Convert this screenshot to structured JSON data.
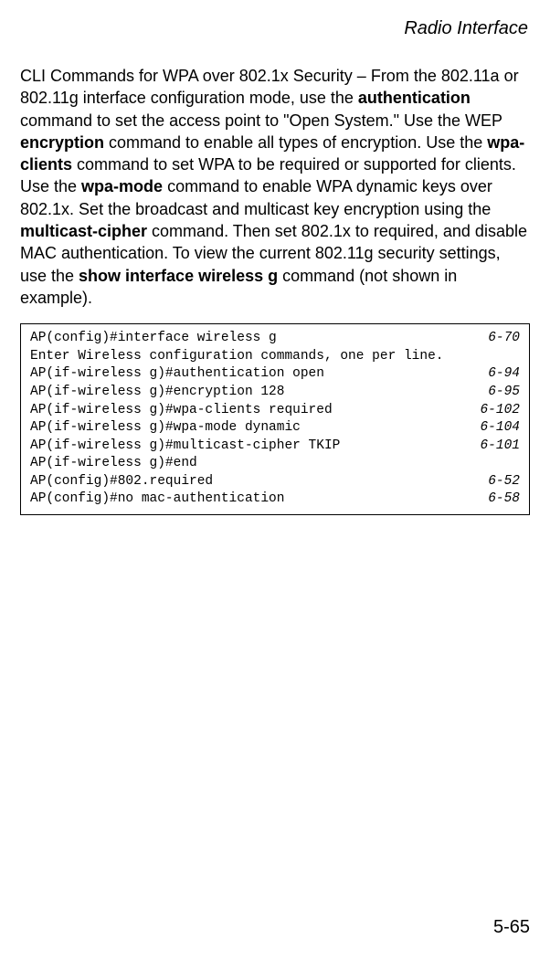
{
  "header": {
    "title": "Radio Interface"
  },
  "paragraph": {
    "p1": "CLI Commands for WPA over 802.1x Security – From the 802.11a or 802.11g interface configuration mode, use the ",
    "b1": "authentication",
    "p2": " command to set the access point to \"Open System.\" Use the WEP ",
    "b2": "encryption",
    "p3": " command to enable all types of encryption. Use the ",
    "b3": "wpa-clients",
    "p4": " command to set WPA to be required or supported for clients. Use the ",
    "b4": "wpa-mode",
    "p5": " command to enable WPA dynamic keys over 802.1x. Set the broadcast and multicast key encryption using the ",
    "b5": "multicast-cipher",
    "p6": " command. Then set 802.1x to required, and disable MAC authentication. To view the current 802.11g security settings, use the ",
    "b6": "show interface wireless g",
    "p7": " command (not shown in example)."
  },
  "code": {
    "lines": [
      {
        "cmd": "AP(config)#interface wireless g",
        "ref": "6-70"
      },
      {
        "cmd": "Enter Wireless configuration commands, one per line.",
        "ref": ""
      },
      {
        "cmd": "AP(if-wireless g)#authentication open",
        "ref": "6-94"
      },
      {
        "cmd": "AP(if-wireless g)#encryption 128",
        "ref": "6-95"
      },
      {
        "cmd": "AP(if-wireless g)#wpa-clients required",
        "ref": "6-102"
      },
      {
        "cmd": "AP(if-wireless g)#wpa-mode dynamic",
        "ref": "6-104"
      },
      {
        "cmd": "AP(if-wireless g)#multicast-cipher TKIP",
        "ref": "6-101"
      },
      {
        "cmd": "AP(if-wireless g)#end",
        "ref": ""
      },
      {
        "cmd": "AP(config)#802.required",
        "ref": "6-52"
      },
      {
        "cmd": "AP(config)#no mac-authentication",
        "ref": "6-58"
      }
    ]
  },
  "footer": {
    "page_number": "5-65"
  }
}
